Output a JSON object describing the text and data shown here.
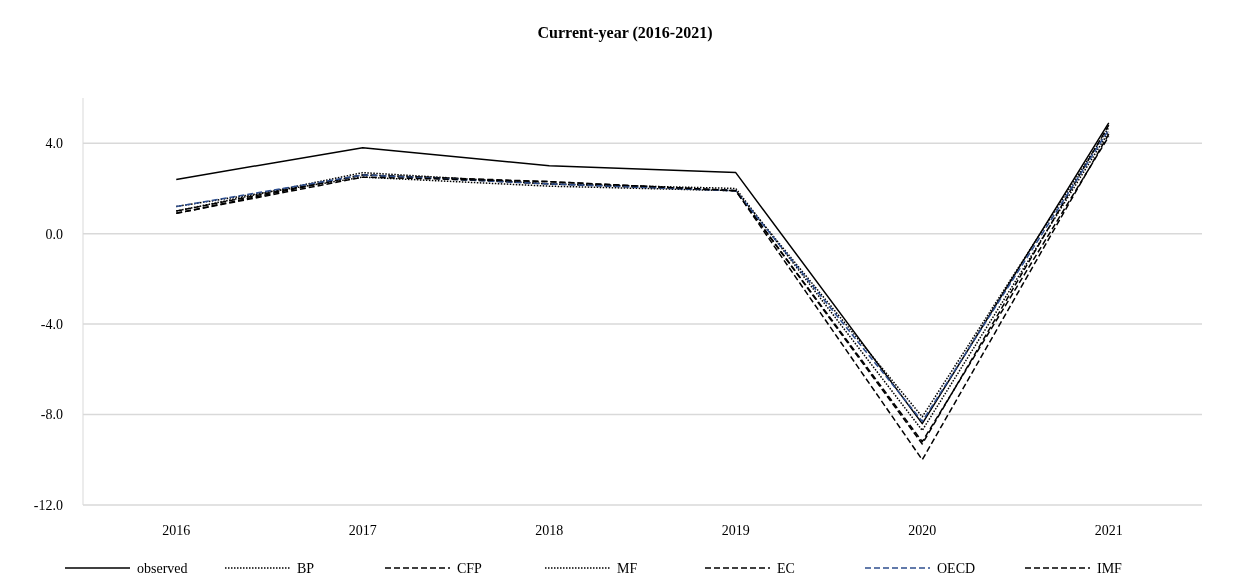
{
  "chart_data": {
    "type": "line",
    "title": "Current-year (2016-2021)",
    "categories": [
      "2016",
      "2017",
      "2018",
      "2019",
      "2020",
      "2021"
    ],
    "series": [
      {
        "name": "observed",
        "color": "#000000",
        "line_style": "solid",
        "values": [
          2.4,
          3.8,
          3.0,
          2.7,
          -8.4,
          4.9
        ]
      },
      {
        "name": "BP",
        "color": "#000000",
        "line_style": "dotted",
        "values": [
          1.2,
          2.5,
          2.1,
          1.9,
          -8.1,
          4.7
        ]
      },
      {
        "name": "CFP",
        "color": "#000000",
        "line_style": "dashed",
        "values": [
          0.9,
          2.6,
          2.3,
          1.9,
          -9.3,
          4.8
        ]
      },
      {
        "name": "MF",
        "color": "#000000",
        "line_style": "dotted",
        "values": [
          1.0,
          2.7,
          2.2,
          2.0,
          -8.7,
          4.5
        ]
      },
      {
        "name": "EC",
        "color": "#000000",
        "line_style": "dashed",
        "values": [
          1.0,
          2.6,
          2.2,
          1.9,
          -9.2,
          4.3
        ]
      },
      {
        "name": "OECD",
        "color": "#2f4f8f",
        "line_style": "dashed",
        "values": [
          1.2,
          2.6,
          2.2,
          1.9,
          -8.3,
          4.6
        ]
      },
      {
        "name": "IMF",
        "color": "#000000",
        "line_style": "dashed",
        "values": [
          0.9,
          2.5,
          2.3,
          1.9,
          -10.0,
          4.4
        ]
      }
    ],
    "ylim": [
      -12,
      6
    ],
    "yticks": [
      {
        "value": -12,
        "label": "-12.0"
      },
      {
        "value": -8,
        "label": "-8.0"
      },
      {
        "value": -4,
        "label": "-4.0"
      },
      {
        "value": 0,
        "label": "0.0"
      },
      {
        "value": 4,
        "label": "4.0"
      }
    ],
    "grid": "y",
    "legend": "bottom"
  }
}
